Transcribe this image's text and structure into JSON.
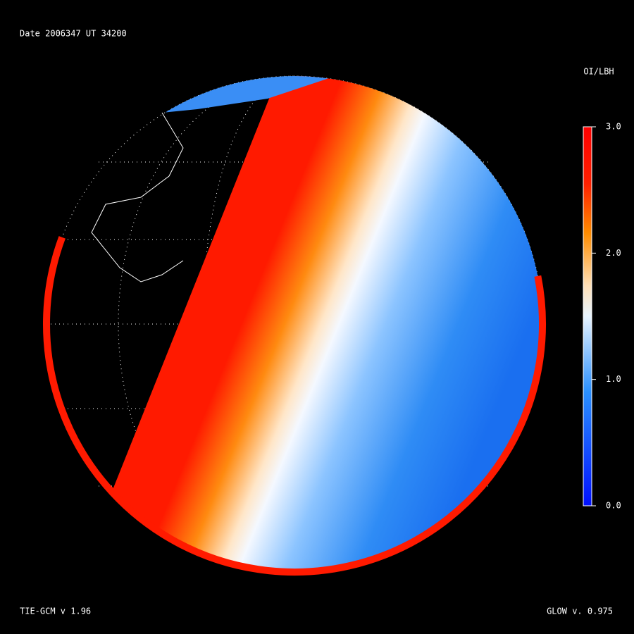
{
  "header": {
    "title": "Date 2006347   UT 34200"
  },
  "colorbar": {
    "title": "OI/LBH",
    "range": [
      0,
      3
    ],
    "ticks": [
      {
        "value": 3,
        "label": "3.0"
      },
      {
        "value": 2,
        "label": "2.0"
      },
      {
        "value": 1,
        "label": "1.0"
      },
      {
        "value": 0,
        "label": "0.0"
      }
    ]
  },
  "footer": {
    "left": "TIE-GCM v 1.96",
    "right": "GLOW v. 0.975"
  }
}
